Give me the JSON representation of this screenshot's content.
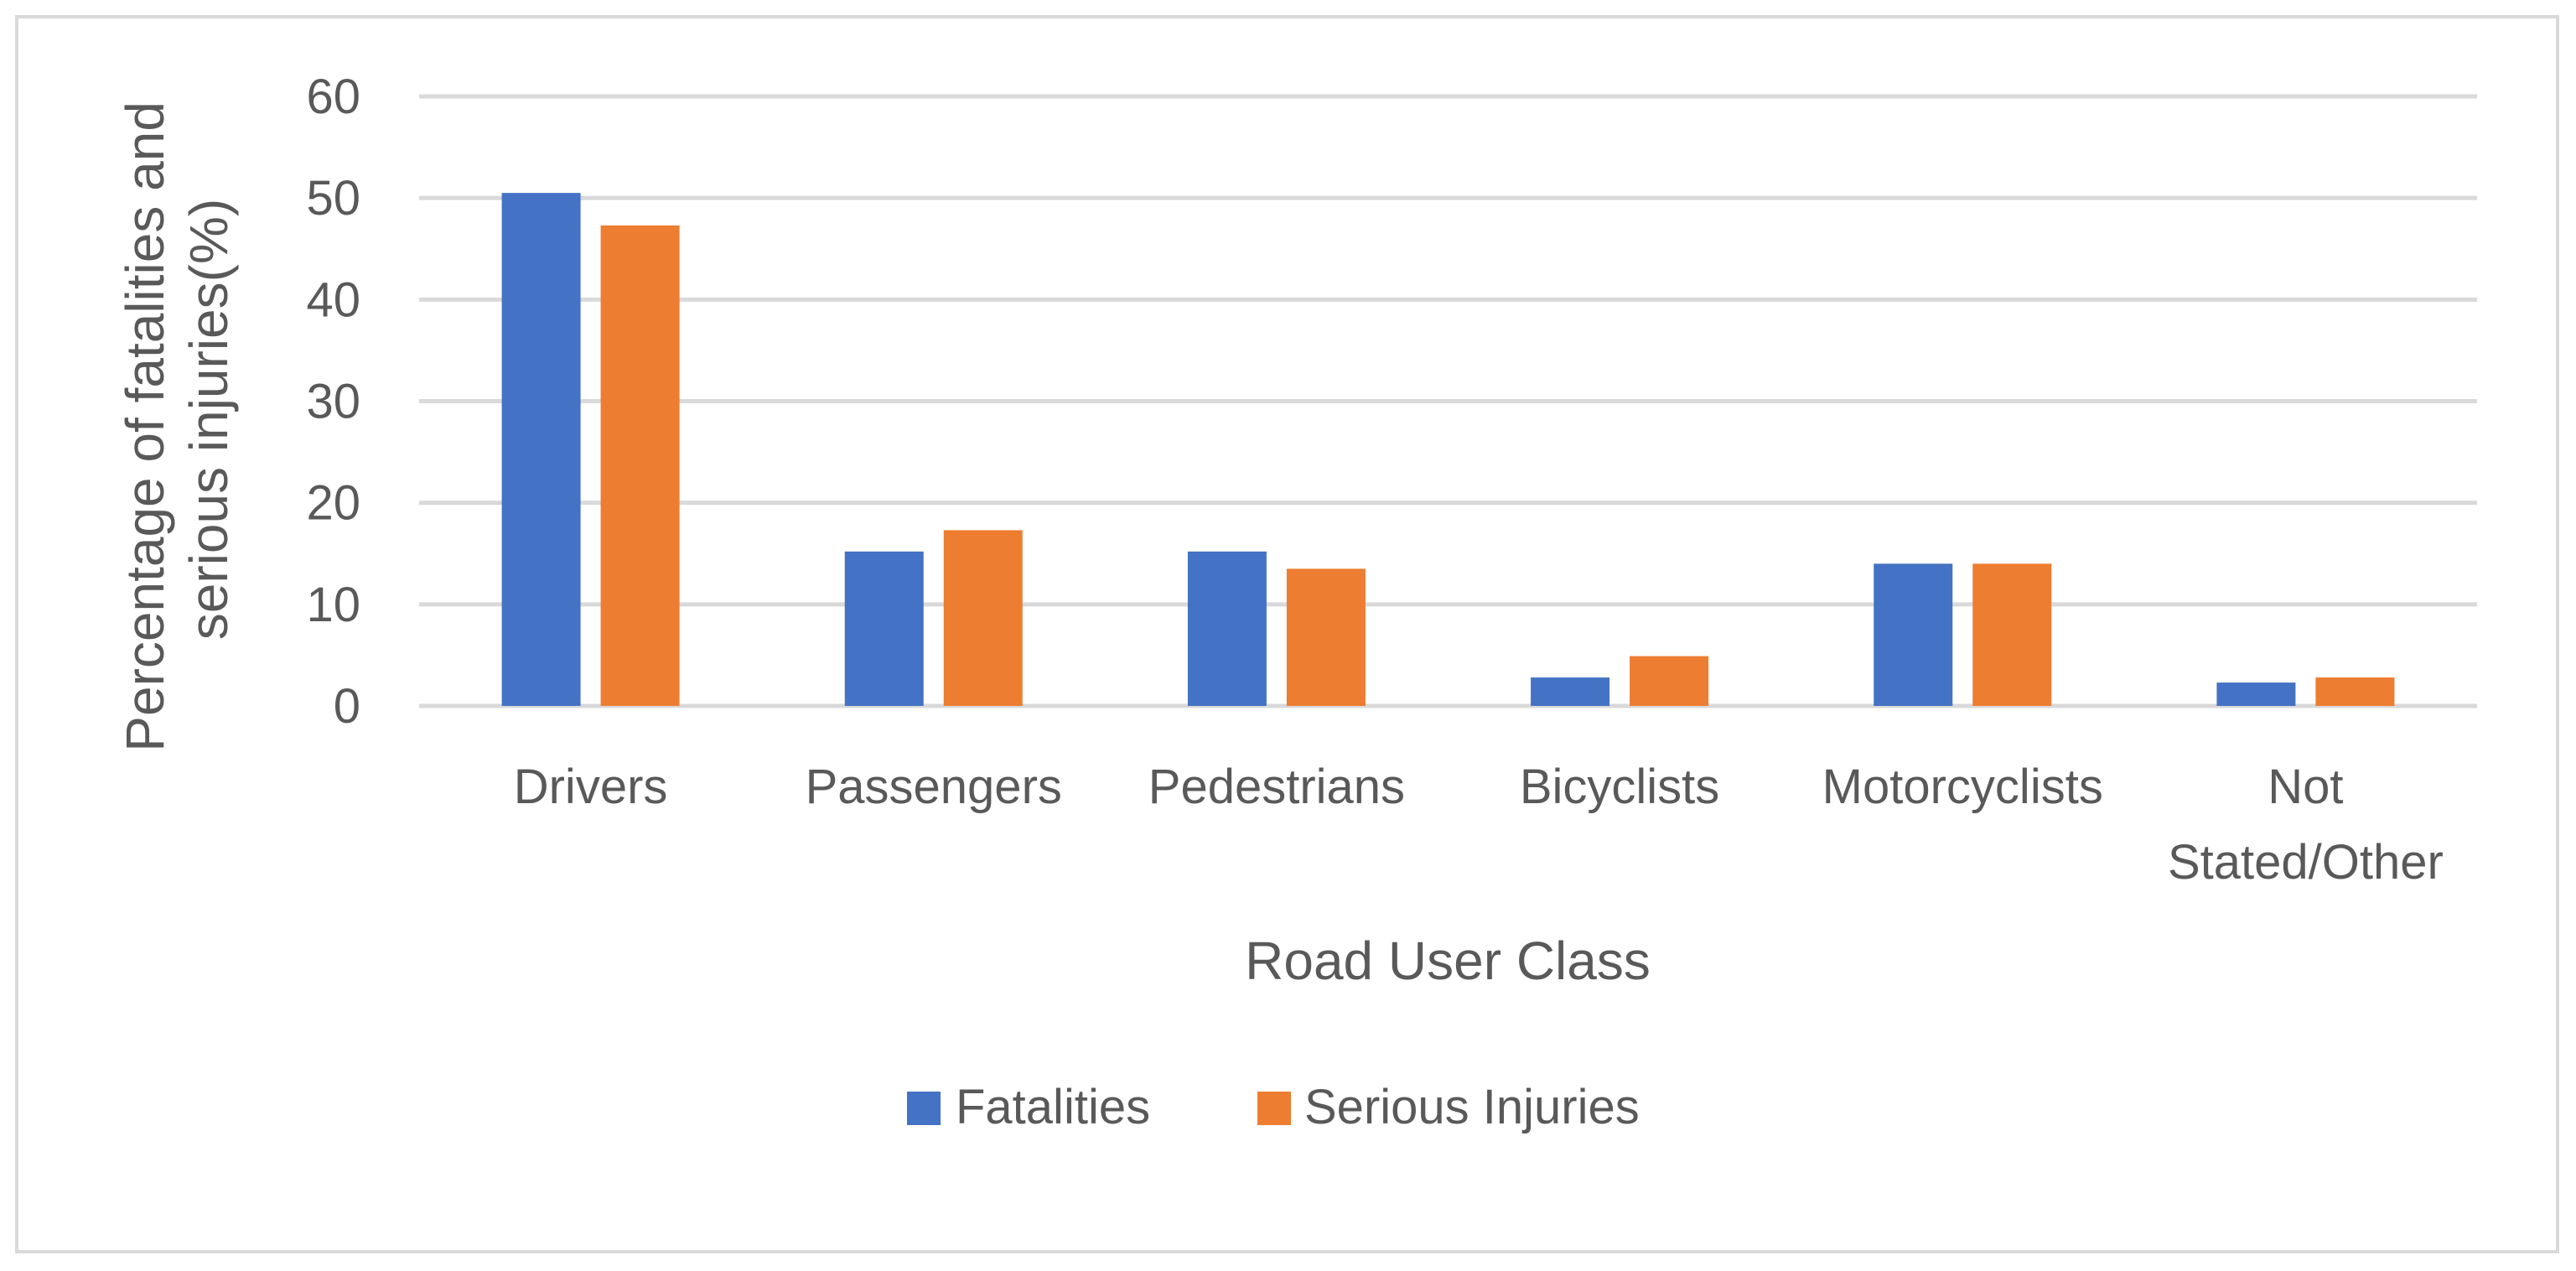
{
  "chart_data": {
    "type": "bar",
    "title": "",
    "xlabel": "Road User Class",
    "ylabel_lines": [
      "Percentage of fatalities and",
      "serious injuries(%)"
    ],
    "ylim": [
      0,
      60
    ],
    "yticks": [
      0,
      10,
      20,
      30,
      40,
      50,
      60
    ],
    "grid": true,
    "legend_position": "bottom",
    "categories": [
      [
        "Drivers"
      ],
      [
        "Passengers"
      ],
      [
        "Pedestrians"
      ],
      [
        "Bicyclists"
      ],
      [
        "Motorcyclists"
      ],
      [
        "Not",
        "Stated/Other"
      ]
    ],
    "series": [
      {
        "name": "Fatalities",
        "color": "#4472c4",
        "values": [
          50.5,
          15.2,
          15.2,
          2.8,
          14.0,
          2.3
        ]
      },
      {
        "name": "Serious Injuries",
        "color": "#ed7d31",
        "values": [
          47.3,
          17.3,
          13.5,
          4.9,
          14.0,
          2.8
        ]
      }
    ]
  }
}
